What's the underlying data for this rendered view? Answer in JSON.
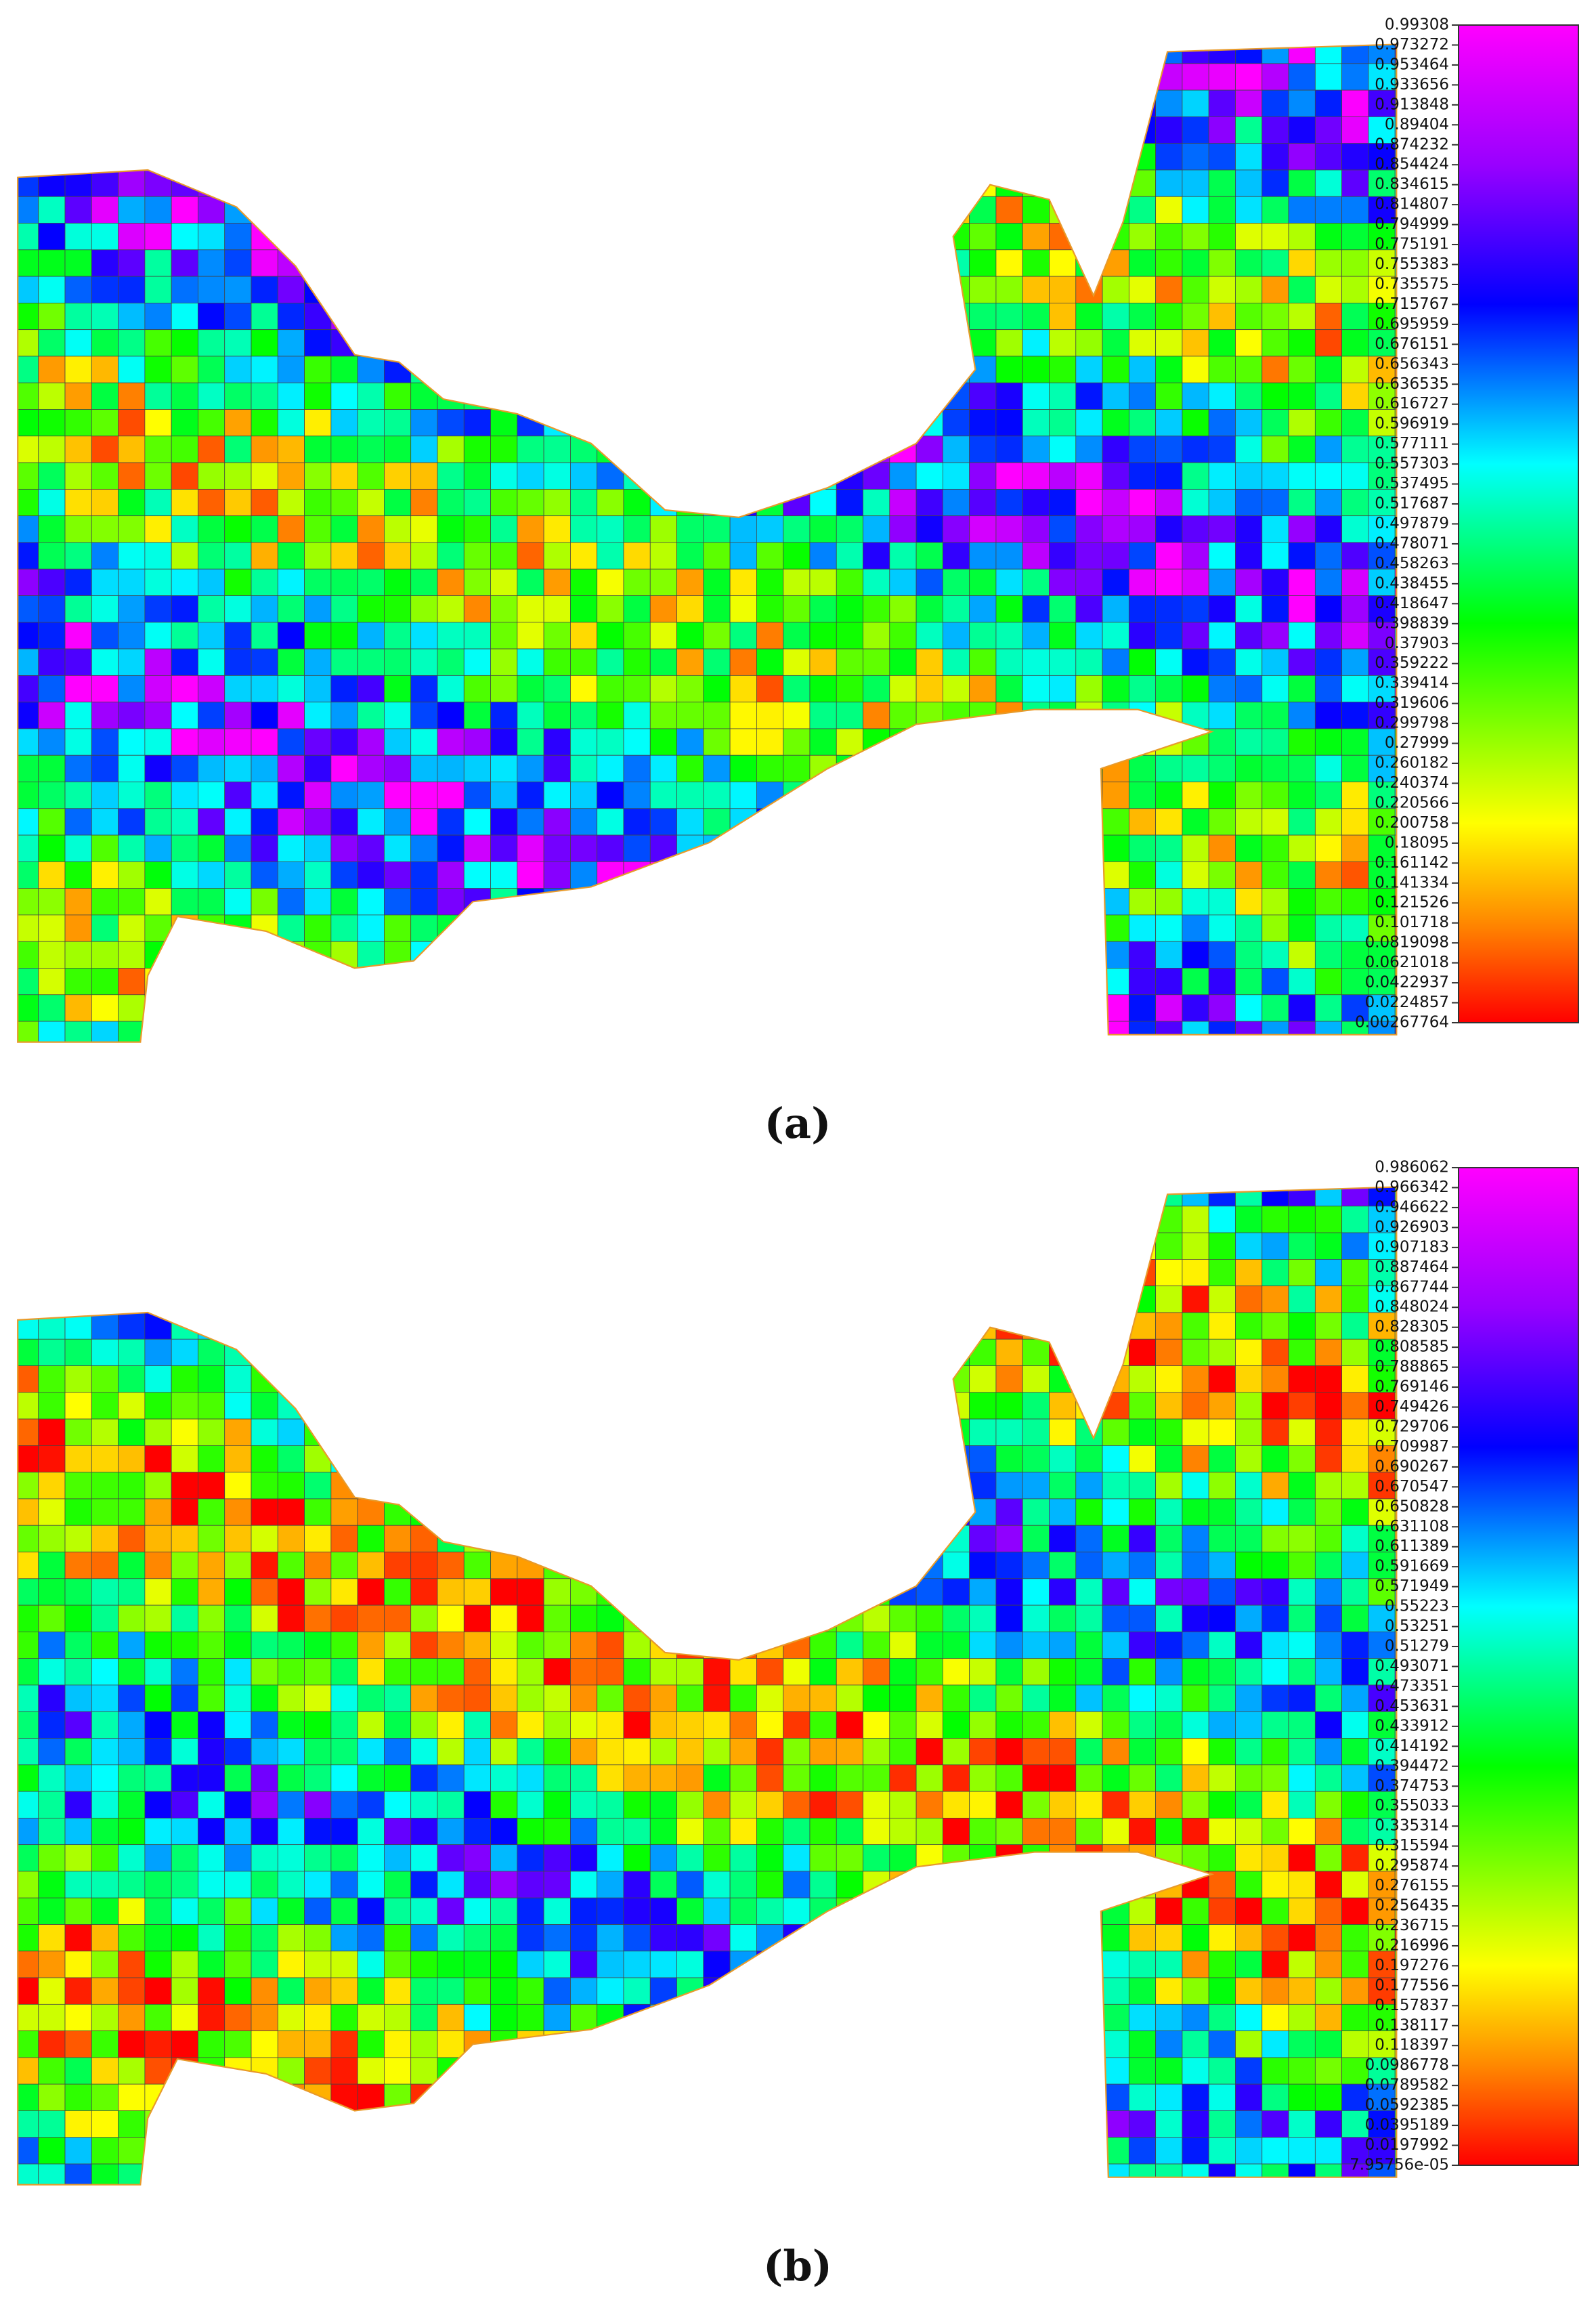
{
  "panels": [
    {
      "caption": "(a)",
      "colorbar_labels": [
        "0.99308",
        "0.973272",
        "0.953464",
        "0.933656",
        "0.913848",
        "0.89404",
        "0.874232",
        "0.854424",
        "0.834615",
        "0.814807",
        "0.794999",
        "0.775191",
        "0.755383",
        "0.735575",
        "0.715767",
        "0.695959",
        "0.676151",
        "0.656343",
        "0.636535",
        "0.616727",
        "0.596919",
        "0.577111",
        "0.557303",
        "0.537495",
        "0.517687",
        "0.497879",
        "0.478071",
        "0.458263",
        "0.438455",
        "0.418647",
        "0.398839",
        "0.37903",
        "0.359222",
        "0.339414",
        "0.319606",
        "0.299798",
        "0.27999",
        "0.260182",
        "0.240374",
        "0.220566",
        "0.200758",
        "0.18095",
        "0.161142",
        "0.141334",
        "0.121526",
        "0.101718",
        "0.0819098",
        "0.0621018",
        "0.0422937",
        "0.0224857",
        "0.00267764"
      ]
    },
    {
      "caption": "(b)",
      "colorbar_labels": [
        "0.986062",
        "0.966342",
        "0.946622",
        "0.926903",
        "0.907183",
        "0.887464",
        "0.867744",
        "0.848024",
        "0.828305",
        "0.808585",
        "0.788865",
        "0.769146",
        "0.749426",
        "0.729706",
        "0.709987",
        "0.690267",
        "0.670547",
        "0.650828",
        "0.631108",
        "0.611389",
        "0.591669",
        "0.571949",
        "0.55223",
        "0.53251",
        "0.51279",
        "0.493071",
        "0.473351",
        "0.453631",
        "0.433912",
        "0.414192",
        "0.394472",
        "0.374753",
        "0.355033",
        "0.335314",
        "0.315594",
        "0.295874",
        "0.276155",
        "0.256435",
        "0.236715",
        "0.216996",
        "0.197276",
        "0.177556",
        "0.157837",
        "0.138117",
        "0.118397",
        "0.0986778",
        "0.0789582",
        "0.0592385",
        "0.0395189",
        "0.0197992",
        "7.95756e-05"
      ]
    }
  ]
}
